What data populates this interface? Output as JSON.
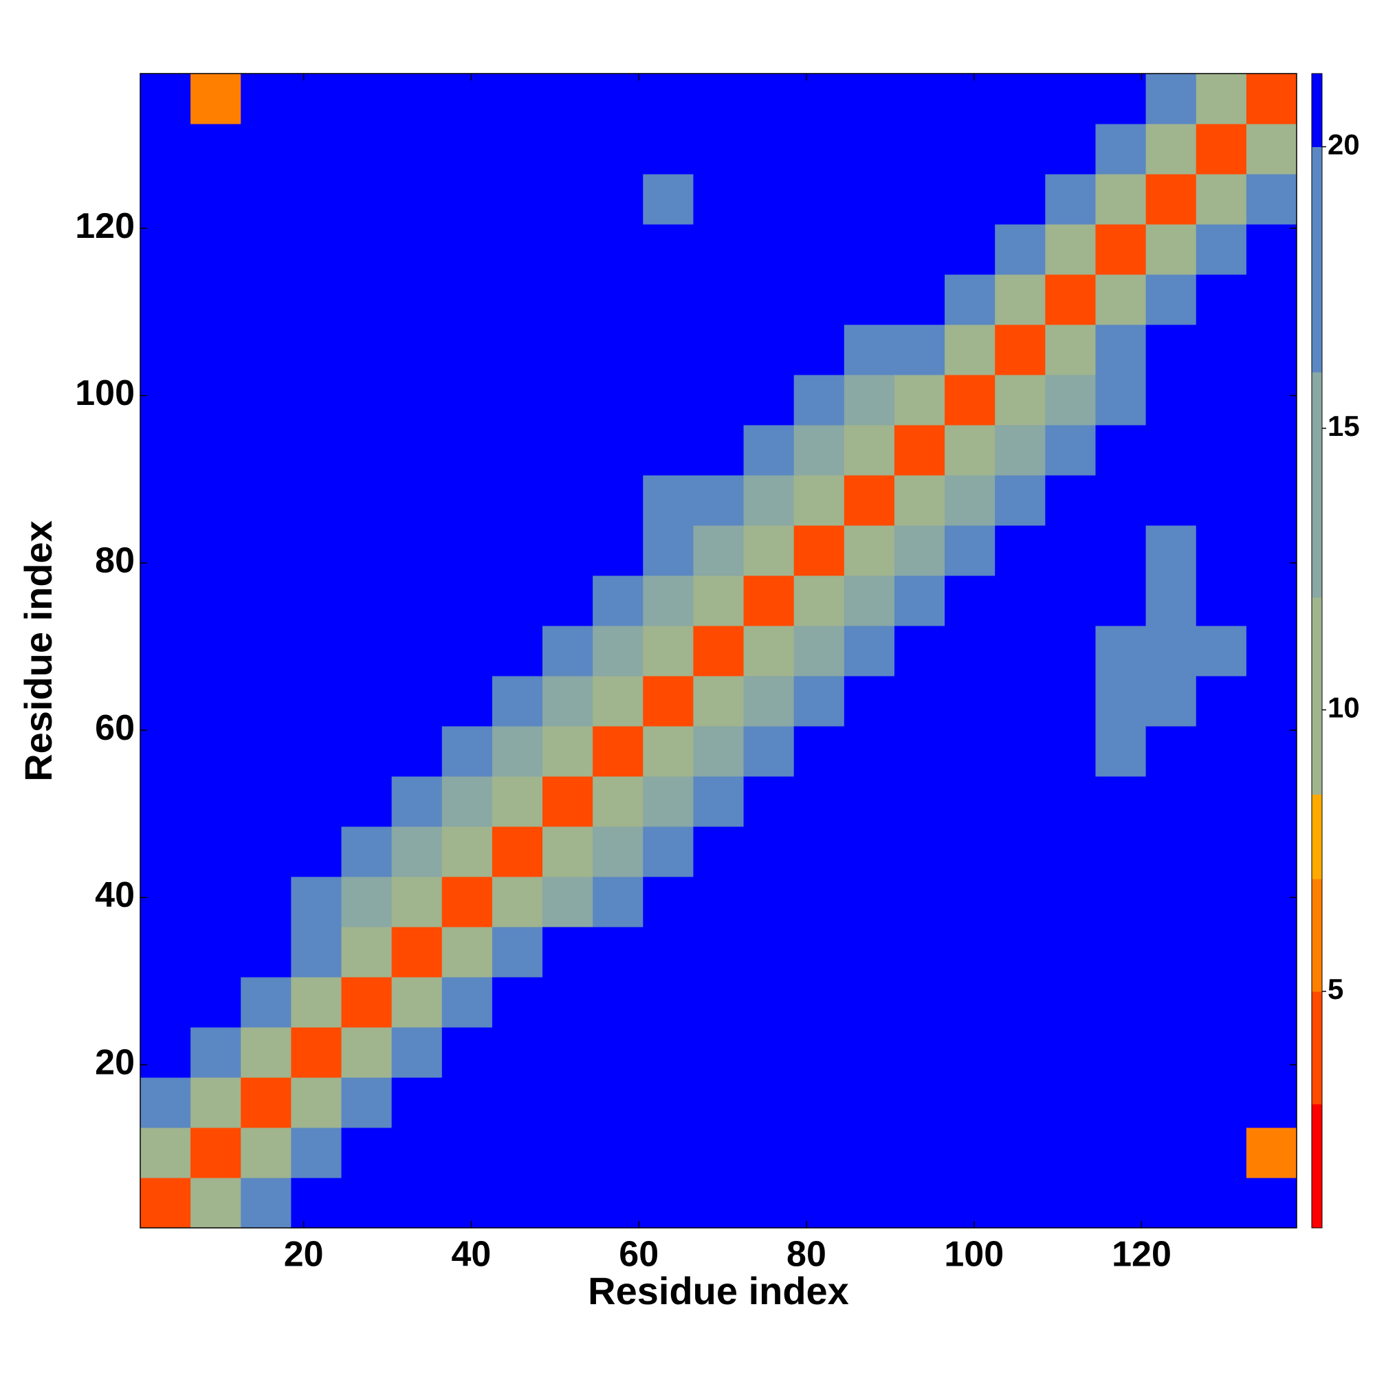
{
  "chart_data": {
    "type": "heatmap",
    "x_label": "Residue index",
    "y_label": "Residue index",
    "xbins": [
      0.5,
      6.5,
      12.5,
      18.5,
      24.5,
      30.5,
      36.5,
      42.5,
      48.5,
      54.5,
      60.5,
      66.5,
      72.5,
      78.5,
      84.5,
      90.5,
      96.5,
      102.5,
      108.5,
      114.5,
      120.5,
      126.5,
      132.5,
      138.5
    ],
    "ybins": [
      0.5,
      6.5,
      12.5,
      18.5,
      24.5,
      30.5,
      36.5,
      42.5,
      48.5,
      54.5,
      60.5,
      66.5,
      72.5,
      78.5,
      84.5,
      90.5,
      96.5,
      102.5,
      108.5,
      114.5,
      120.5,
      126.5,
      132.5,
      138.5
    ],
    "xlim": [
      0.5,
      138.5
    ],
    "ylim": [
      0.5,
      138.5
    ],
    "xticks": [
      20,
      40,
      60,
      80,
      100,
      120
    ],
    "yticks": [
      20,
      40,
      60,
      80,
      100,
      120
    ],
    "z": [
      [
        3,
        11,
        17,
        21,
        21,
        21,
        21,
        21,
        21,
        21,
        21,
        21,
        21,
        21,
        21,
        21,
        21,
        21,
        21,
        21,
        21,
        21,
        21
      ],
      [
        11,
        3,
        11,
        17,
        21,
        21,
        21,
        21,
        21,
        21,
        21,
        21,
        21,
        21,
        21,
        21,
        21,
        21,
        21,
        21,
        21,
        21,
        6
      ],
      [
        17,
        11,
        3,
        11,
        17,
        21,
        21,
        21,
        21,
        21,
        21,
        21,
        21,
        21,
        21,
        21,
        21,
        21,
        21,
        21,
        21,
        21,
        21
      ],
      [
        21,
        17,
        11,
        3,
        11,
        17,
        21,
        21,
        21,
        21,
        21,
        21,
        21,
        21,
        21,
        21,
        21,
        21,
        21,
        21,
        21,
        21,
        21
      ],
      [
        21,
        21,
        17,
        11,
        3,
        11,
        17,
        21,
        21,
        21,
        21,
        21,
        21,
        21,
        21,
        21,
        21,
        21,
        21,
        21,
        21,
        21,
        21
      ],
      [
        21,
        21,
        21,
        17,
        11,
        3,
        11,
        17,
        21,
        21,
        21,
        21,
        21,
        21,
        21,
        21,
        21,
        21,
        21,
        21,
        21,
        21,
        21
      ],
      [
        21,
        21,
        21,
        19,
        15,
        11,
        3,
        11,
        15,
        19,
        21,
        21,
        21,
        21,
        21,
        21,
        21,
        21,
        21,
        21,
        21,
        21,
        21
      ],
      [
        21,
        21,
        21,
        21,
        19,
        15,
        11,
        3,
        11,
        15,
        19,
        21,
        21,
        21,
        21,
        21,
        21,
        21,
        21,
        21,
        21,
        21,
        21
      ],
      [
        21,
        21,
        21,
        21,
        21,
        19,
        15,
        11,
        3,
        11,
        15,
        19,
        21,
        21,
        21,
        21,
        21,
        21,
        21,
        21,
        21,
        21,
        21
      ],
      [
        21,
        21,
        21,
        21,
        21,
        21,
        19,
        15,
        11,
        3,
        11,
        15,
        19,
        21,
        21,
        21,
        21,
        21,
        21,
        19,
        20,
        21,
        21
      ],
      [
        21,
        21,
        21,
        21,
        21,
        21,
        21,
        19,
        15,
        11,
        3,
        11,
        15,
        19,
        21,
        21,
        21,
        21,
        21,
        19,
        19,
        20,
        21
      ],
      [
        21,
        21,
        21,
        21,
        21,
        21,
        21,
        21,
        19,
        15,
        11,
        3,
        11,
        15,
        19,
        21,
        21,
        21,
        21,
        19,
        19,
        19,
        21
      ],
      [
        21,
        21,
        21,
        21,
        21,
        21,
        21,
        21,
        21,
        19,
        15,
        11,
        3,
        11,
        15,
        19,
        21,
        21,
        21,
        20,
        19,
        20,
        21
      ],
      [
        21,
        21,
        21,
        21,
        21,
        21,
        21,
        21,
        21,
        21,
        19,
        15,
        11,
        3,
        11,
        15,
        19,
        21,
        21,
        21,
        19,
        21,
        21
      ],
      [
        21,
        21,
        21,
        21,
        21,
        21,
        21,
        21,
        21,
        21,
        18,
        19,
        15,
        11,
        3,
        11,
        15,
        19,
        20,
        21,
        21,
        21,
        21
      ],
      [
        21,
        21,
        21,
        21,
        21,
        21,
        21,
        21,
        21,
        21,
        21,
        21,
        19,
        15,
        11,
        3,
        11,
        15,
        19,
        20,
        20,
        21,
        21
      ],
      [
        21,
        21,
        21,
        21,
        21,
        21,
        21,
        21,
        21,
        21,
        21,
        21,
        21,
        19,
        15,
        11,
        3,
        11,
        15,
        19,
        20,
        21,
        21
      ],
      [
        21,
        21,
        21,
        21,
        21,
        21,
        21,
        21,
        21,
        21,
        21,
        21,
        21,
        21,
        19,
        17,
        11,
        3,
        11,
        17,
        21,
        21,
        21
      ],
      [
        21,
        21,
        21,
        21,
        21,
        21,
        21,
        21,
        21,
        21,
        21,
        21,
        21,
        20,
        21,
        21,
        17,
        11,
        3,
        11,
        17,
        20,
        20
      ],
      [
        21,
        21,
        21,
        21,
        21,
        21,
        21,
        21,
        21,
        20,
        21,
        21,
        20,
        21,
        21,
        21,
        21,
        17,
        11,
        3,
        11,
        17,
        20
      ],
      [
        20,
        21,
        21,
        21,
        21,
        21,
        21,
        21,
        21,
        20,
        19,
        20,
        20,
        20,
        21,
        21,
        21,
        21,
        17,
        11,
        3,
        11,
        17
      ],
      [
        21,
        21,
        21,
        21,
        21,
        21,
        21,
        21,
        21,
        21,
        20,
        20,
        21,
        21,
        21,
        21,
        21,
        21,
        21,
        17,
        11,
        3,
        11
      ],
      [
        21,
        6,
        21,
        21,
        21,
        21,
        21,
        21,
        21,
        21,
        21,
        21,
        21,
        21,
        21,
        21,
        21,
        21,
        21,
        20,
        17,
        11,
        3
      ]
    ],
    "colorbar": {
      "lim": [
        0.8,
        21.3
      ],
      "ticks": [
        5,
        10,
        15,
        20
      ],
      "levels": [
        0.8,
        3,
        5,
        7,
        8.5,
        12,
        16,
        20,
        21.3
      ],
      "colors": [
        "#ff0000",
        "#ff4a00",
        "#ff8000",
        "#ffaa00",
        "#a0b48e",
        "#8aa8a4",
        "#5b88c2",
        "#0000ff"
      ]
    }
  }
}
